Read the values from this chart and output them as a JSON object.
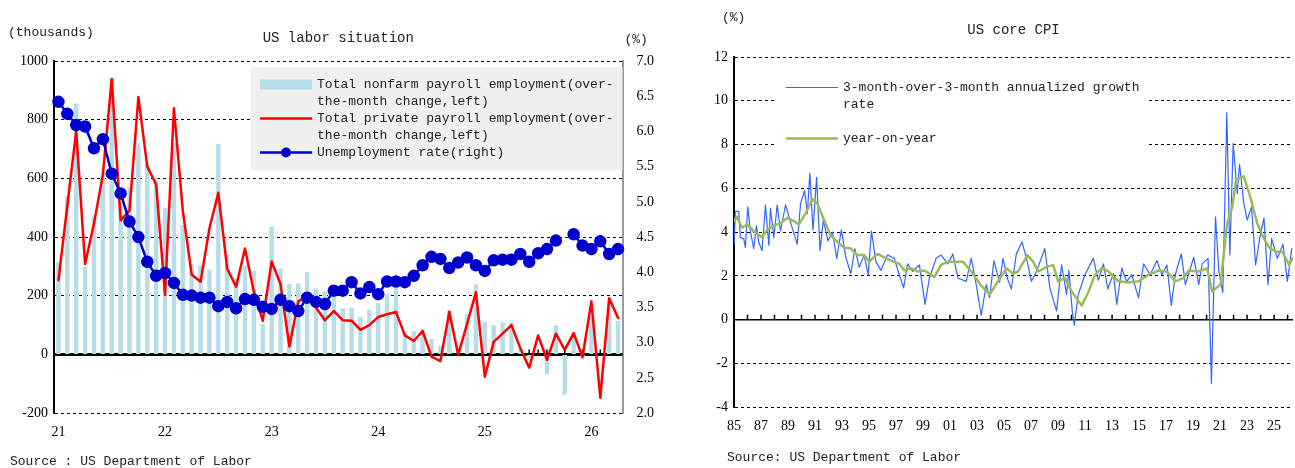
{
  "chart_data": [
    {
      "type": "bar",
      "title": "US labor situation",
      "ylabel": "(thousands)",
      "y2label": "(%)",
      "grid": "y",
      "legend": "top right",
      "annotations": [
        "Source : US Department of Labor"
      ],
      "categories": [
        "21",
        null,
        null,
        null,
        null,
        null,
        null,
        null,
        null,
        null,
        null,
        null,
        "22",
        null,
        null,
        null,
        null,
        null,
        null,
        null,
        null,
        null,
        null,
        null,
        "23",
        null,
        null,
        null,
        null,
        null,
        null,
        null,
        null,
        null,
        null,
        null,
        "24",
        null,
        null,
        null,
        null,
        null,
        null,
        null,
        null,
        null,
        null,
        null,
        "25",
        null,
        null,
        null,
        null,
        null,
        null,
        null,
        null,
        null,
        null,
        null,
        "26",
        null,
        null,
        null
      ],
      "ylim": [
        -200,
        1000
      ],
      "yticks": [
        -200,
        0,
        200,
        400,
        600,
        800,
        1000
      ],
      "y2lim": [
        2,
        7
      ],
      "y2ticks": [
        {
          "value": 2,
          "label": "2.0"
        },
        2.5,
        {
          "value": 3,
          "label": "3.0"
        },
        3.5,
        {
          "value": 4,
          "label": "4.0"
        },
        4.5,
        {
          "value": 5,
          "label": "5.0"
        },
        5.5,
        {
          "value": 6,
          "label": "6.0"
        },
        6.5,
        {
          "value": 7,
          "label": "7.0"
        }
      ],
      "series": [
        {
          "name": "Total nonfarm payroll employment(over-the-month change,left)",
          "type": "bar",
          "color": "#b7dde8",
          "values": [
            316,
            540,
            855,
            300,
            470,
            620,
            944,
            520,
            570,
            720,
            650,
            600,
            500,
            720,
            440,
            308,
            303,
            290,
            717,
            340,
            260,
            303,
            285,
            104,
            435,
            292,
            240,
            242,
            281,
            225,
            215,
            198,
            157,
            159,
            128,
            153,
            175,
            205,
            229,
            79,
            80,
            87,
            54,
            30,
            153,
            null,
            137,
            239,
            110,
            100,
            110,
            109,
            20,
            -13,
            null,
            -67,
            100,
            -137,
            76,
            -16,
            130,
            null,
            178,
            115
          ]
        },
        {
          "name": "Total private payroll employment(over-the-month change,left)",
          "type": "line",
          "marker": "none",
          "color": "#ff0000",
          "values": [
            253,
            507,
            761,
            308,
            446,
            612,
            938,
            457,
            490,
            877,
            640,
            579,
            203,
            839,
            490,
            272,
            248,
            430,
            551,
            292,
            231,
            361,
            214,
            115,
            317,
            240,
            27,
            181,
            198,
            159,
            117,
            148,
            117,
            115,
            84,
            100,
            128,
            137,
            145,
            65,
            46,
            80,
            -7,
            -23,
            145,
            -1,
            104,
            212,
            -76,
            43,
            71,
            100,
            21,
            -45,
            65,
            -18,
            71,
            16,
            73,
            -9,
            181,
            -148,
            192,
            124
          ]
        },
        {
          "name": "Unemployment rate(right)",
          "type": "line",
          "axis": "y2",
          "marker": "circle",
          "color": "#0000cc",
          "values": [
            6.42,
            6.25,
            6.09,
            6.07,
            5.76,
            5.89,
            5.4,
            5.12,
            4.72,
            4.5,
            4.15,
            3.95,
            3.99,
            3.85,
            3.68,
            3.67,
            3.64,
            3.64,
            3.52,
            3.58,
            3.49,
            3.62,
            3.61,
            3.51,
            3.48,
            3.61,
            3.52,
            3.45,
            3.64,
            3.58,
            3.55,
            3.74,
            3.74,
            3.86,
            3.7,
            3.79,
            3.69,
            3.87,
            3.87,
            3.86,
            3.95,
            4.1,
            4.22,
            4.19,
            4.06,
            4.14,
            4.21,
            4.1,
            4.02,
            4.17,
            4.18,
            4.18,
            4.26,
            4.15,
            4.27,
            4.33,
            4.45,
            null,
            4.54,
            4.38,
            4.33,
            4.44,
            4.26,
            4.33
          ]
        }
      ]
    },
    {
      "type": "line",
      "title": "US core CPI",
      "ylabel": "(%)",
      "grid": "y",
      "legend": "top left",
      "annotations": [
        "Source: US Department of Labor"
      ],
      "xlim": [
        1985,
        2026.4
      ],
      "xticks": [
        {
          "value": 1985,
          "label": "85"
        },
        {
          "value": 1986,
          "label": null
        },
        {
          "value": 1987,
          "label": "87"
        },
        {
          "value": 1988,
          "label": null
        },
        {
          "value": 1989,
          "label": "89"
        },
        {
          "value": 1990,
          "label": null
        },
        {
          "value": 1991,
          "label": "91"
        },
        {
          "value": 1992,
          "label": null
        },
        {
          "value": 1993,
          "label": "93"
        },
        {
          "value": 1994,
          "label": null
        },
        {
          "value": 1995,
          "label": "95"
        },
        {
          "value": 1996,
          "label": null
        },
        {
          "value": 1997,
          "label": "97"
        },
        {
          "value": 1998,
          "label": null
        },
        {
          "value": 1999,
          "label": "99"
        },
        {
          "value": 2000,
          "label": null
        },
        {
          "value": 2001,
          "label": "01"
        },
        {
          "value": 2002,
          "label": null
        },
        {
          "value": 2003,
          "label": "03"
        },
        {
          "value": 2004,
          "label": null
        },
        {
          "value": 2005,
          "label": "05"
        },
        {
          "value": 2006,
          "label": null
        },
        {
          "value": 2007,
          "label": "07"
        },
        {
          "value": 2008,
          "label": null
        },
        {
          "value": 2009,
          "label": "09"
        },
        {
          "value": 2010,
          "label": null
        },
        {
          "value": 2011,
          "label": "11"
        },
        {
          "value": 2012,
          "label": null
        },
        {
          "value": 2013,
          "label": "13"
        },
        {
          "value": 2014,
          "label": null
        },
        {
          "value": 2015,
          "label": "15"
        },
        {
          "value": 2016,
          "label": null
        },
        {
          "value": 2017,
          "label": "17"
        },
        {
          "value": 2018,
          "label": null
        },
        {
          "value": 2019,
          "label": "19"
        },
        {
          "value": 2020,
          "label": null
        },
        {
          "value": 2021,
          "label": "21"
        },
        {
          "value": 2022,
          "label": null
        },
        {
          "value": 2023,
          "label": "23"
        },
        {
          "value": 2024,
          "label": null
        },
        {
          "value": 2025,
          "label": "25"
        },
        {
          "value": 2026,
          "label": null
        }
      ],
      "ylim": [
        -4,
        12
      ],
      "yticks": [
        -4,
        -2,
        0,
        2,
        4,
        6,
        8,
        10,
        12
      ],
      "series": [
        {
          "name": "3-month-over-3-month annualized growth rate",
          "color": "#3366ff",
          "x": [
            1985.0,
            1985.1,
            1985.35,
            1985.47,
            1985.72,
            1985.84,
            1986.02,
            1986.21,
            1986.46,
            1986.66,
            1986.83,
            1987.08,
            1987.33,
            1987.58,
            1987.7,
            1987.95,
            1988.2,
            1988.44,
            1988.82,
            1989.14,
            1989.68,
            1989.93,
            1990.23,
            1990.43,
            1990.62,
            1990.85,
            1991.12,
            1991.37,
            1991.62,
            1991.96,
            1992.29,
            1992.61,
            1992.95,
            1993.28,
            1993.65,
            1993.95,
            1994.27,
            1994.64,
            1994.94,
            1995.18,
            1995.51,
            1995.88,
            1996.37,
            1996.87,
            1997.24,
            1997.56,
            1997.86,
            1998.23,
            1998.73,
            1999.15,
            1999.47,
            1999.97,
            2000.34,
            2000.84,
            2001.21,
            2001.58,
            2002.2,
            2002.57,
            2002.94,
            2003.31,
            2003.68,
            2003.93,
            2004.25,
            2004.67,
            2004.92,
            2005.24,
            2005.54,
            2005.91,
            2006.33,
            2006.66,
            2007.03,
            2007.4,
            2008.02,
            2008.39,
            2008.89,
            2009.26,
            2009.63,
            2009.8,
            2010.05,
            2010.2,
            2010.5,
            2010.99,
            2011.61,
            2011.98,
            2012.36,
            2012.68,
            2013.1,
            2013.35,
            2013.72,
            2014.09,
            2014.46,
            2014.96,
            2015.33,
            2015.82,
            2016.32,
            2016.69,
            2017.06,
            2017.39,
            2017.68,
            2018.13,
            2018.43,
            2019.05,
            2019.42,
            2019.67,
            2020.11,
            2020.36,
            2020.66,
            2020.91,
            2021.2,
            2021.5,
            2021.72,
            2021.97,
            2022.27,
            2022.44,
            2022.76,
            2023.01,
            2023.33,
            2023.63,
            2023.93,
            2024.25,
            2024.55,
            2024.82,
            2025.24,
            2025.66,
            2025.98,
            2026.31
          ],
          "values": [
            3.4,
            4.95,
            4.95,
            3.75,
            3.7,
            3.3,
            5.15,
            4.05,
            3.25,
            4.3,
            3.55,
            3.15,
            5.25,
            3.4,
            5.1,
            3.75,
            5.25,
            4.05,
            5.25,
            4.55,
            3.45,
            5.3,
            5.9,
            4.85,
            6.7,
            4.1,
            6.5,
            3.15,
            4.55,
            3.6,
            4.0,
            2.8,
            4.1,
            2.85,
            2.1,
            3.25,
            2.4,
            2.95,
            2.05,
            4.05,
            2.65,
            2.25,
            2.95,
            2.8,
            2.05,
            1.45,
            2.55,
            2.2,
            2.5,
            0.7,
            1.9,
            2.8,
            2.95,
            2.55,
            3.0,
            1.9,
            1.75,
            2.8,
            1.6,
            0.2,
            1.6,
            1.0,
            2.7,
            1.7,
            2.8,
            1.9,
            1.4,
            3.0,
            3.55,
            2.8,
            1.75,
            2.2,
            3.25,
            1.45,
            0.4,
            2.5,
            1.15,
            2.25,
            0.4,
            -0.25,
            1.15,
            2.05,
            2.8,
            1.8,
            2.55,
            1.4,
            2.1,
            0.7,
            2.35,
            1.75,
            2.05,
            1.0,
            2.55,
            2.05,
            2.7,
            2.05,
            2.5,
            0.65,
            2.05,
            3.0,
            1.6,
            2.85,
            1.6,
            2.55,
            2.8,
            -2.9,
            4.7,
            2.2,
            1.25,
            9.45,
            2.95,
            8.05,
            5.75,
            7.1,
            5.3,
            4.55,
            5.15,
            2.5,
            3.7,
            4.65,
            1.6,
            3.7,
            2.8,
            3.45,
            1.75,
            3.25
          ]
        },
        {
          "name": "year-on-year",
          "color": "#9bbb59",
          "x": [
            1985.0,
            1985.22,
            1985.59,
            1985.97,
            1986.46,
            1987.08,
            1987.45,
            1987.95,
            1988.44,
            1988.94,
            1989.44,
            1989.81,
            1990.3,
            1990.8,
            1991.17,
            1991.67,
            1992.16,
            1992.66,
            1993.15,
            1993.65,
            1994.14,
            1994.64,
            1995.01,
            1995.63,
            1996.13,
            1996.62,
            1997.24,
            1997.61,
            1998.11,
            1998.6,
            1999.1,
            1999.84,
            2000.34,
            2000.84,
            2001.33,
            2001.95,
            2002.57,
            2003.31,
            2003.93,
            2004.55,
            2005.17,
            2005.67,
            2006.04,
            2006.73,
            2007.15,
            2007.52,
            2008.14,
            2008.64,
            2009.01,
            2009.51,
            2010.0,
            2010.75,
            2011.24,
            2011.74,
            2012.23,
            2012.73,
            2013.47,
            2014.21,
            2014.96,
            2015.7,
            2016.44,
            2017.06,
            2017.68,
            2018.3,
            2018.67,
            2019.42,
            2020.04,
            2020.41,
            2021.03,
            2021.52,
            2021.9,
            2022.19,
            2022.76,
            2023.26,
            2023.75,
            2024.25,
            2024.62,
            2025.12,
            2025.61,
            2026.11,
            2026.36
          ],
          "values": [
            4.5,
            4.7,
            4.2,
            4.35,
            4.05,
            3.75,
            4.1,
            4.3,
            4.4,
            4.65,
            4.5,
            4.35,
            4.85,
            5.5,
            5.3,
            4.55,
            3.85,
            3.55,
            3.3,
            3.25,
            2.95,
            2.95,
            2.65,
            3.0,
            2.85,
            2.7,
            2.55,
            2.25,
            2.35,
            2.2,
            2.25,
            1.95,
            2.5,
            2.65,
            2.65,
            2.65,
            2.2,
            1.55,
            1.15,
            1.75,
            2.35,
            2.1,
            2.2,
            2.95,
            2.65,
            2.2,
            2.4,
            2.5,
            1.75,
            1.9,
            1.3,
            0.65,
            1.25,
            2.05,
            2.35,
            2.2,
            1.75,
            1.7,
            1.75,
            2.05,
            2.25,
            2.2,
            1.75,
            1.9,
            2.25,
            2.2,
            2.35,
            1.3,
            1.6,
            4.4,
            5.15,
            6.4,
            6.55,
            5.55,
            4.4,
            3.7,
            3.3,
            3.1,
            3.1,
            2.5,
            2.8
          ]
        }
      ]
    }
  ]
}
